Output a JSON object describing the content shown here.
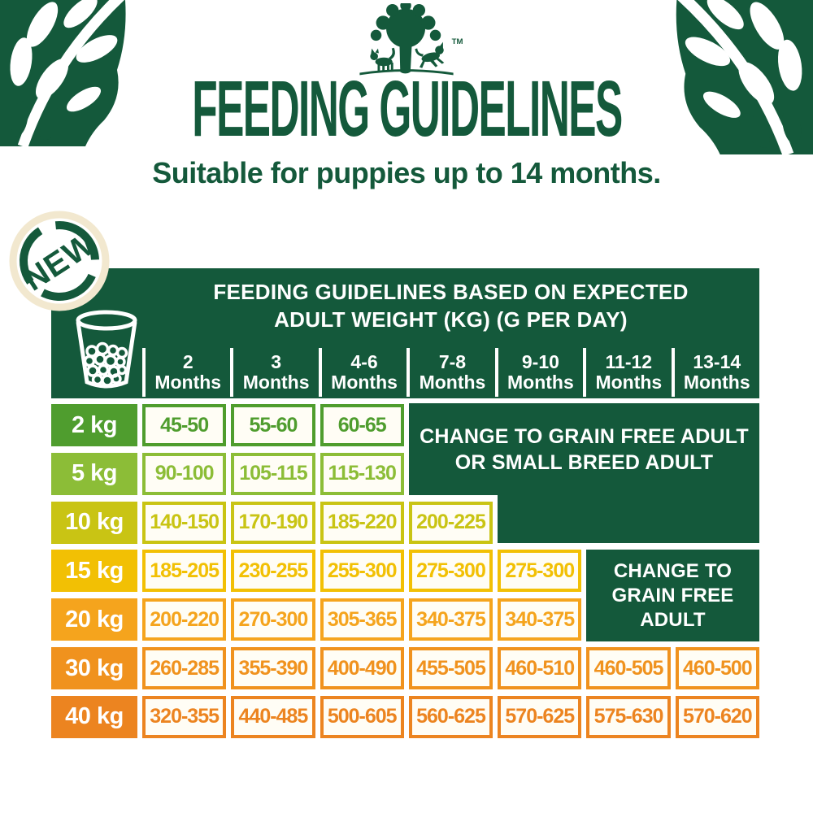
{
  "page_title": "FEEDING GUIDELINES",
  "subtitle": "Suitable for puppies up to 14 months.",
  "badge_label": "NEW",
  "tm": "TM",
  "icons": {
    "logo": "tree-with-pawprint-cat-and-dog",
    "cup": "measuring-cup-with-kibble",
    "corners": "leaf-branch-decoration"
  },
  "colors": {
    "brand_green": "#14593b",
    "cell_background": "#fffdf5",
    "badge_ring_cream": "#f2e8cf",
    "row_colors": [
      "#4f9d2e",
      "#8cbd37",
      "#c9c414",
      "#f2c004",
      "#f5a41d",
      "#f0921e",
      "#ec8420"
    ]
  },
  "chart_data": {
    "type": "table",
    "title": "FEEDING GUIDELINES BASED ON EXPECTED ADULT WEIGHT (KG) (G PER DAY)",
    "title_lines": [
      "FEEDING GUIDELINES BASED ON EXPECTED",
      "ADULT WEIGHT (KG) (G PER DAY)"
    ],
    "columns": [
      {
        "range": "2",
        "unit": "Months"
      },
      {
        "range": "3",
        "unit": "Months"
      },
      {
        "range": "4-6",
        "unit": "Months"
      },
      {
        "range": "7-8",
        "unit": "Months"
      },
      {
        "range": "9-10",
        "unit": "Months"
      },
      {
        "range": "11-12",
        "unit": "Months"
      },
      {
        "range": "13-14",
        "unit": "Months"
      }
    ],
    "rows": [
      {
        "weight": "2 kg",
        "color": "#4f9d2e",
        "values": [
          "45-50",
          "55-60",
          "60-65",
          "",
          "",
          "",
          ""
        ]
      },
      {
        "weight": "5 kg",
        "color": "#8cbd37",
        "values": [
          "90-100",
          "105-115",
          "115-130",
          "",
          "",
          "",
          ""
        ]
      },
      {
        "weight": "10 kg",
        "color": "#c9c414",
        "values": [
          "140-150",
          "170-190",
          "185-220",
          "200-225",
          "",
          "",
          ""
        ]
      },
      {
        "weight": "15 kg",
        "color": "#f2c004",
        "values": [
          "185-205",
          "230-255",
          "255-300",
          "275-300",
          "275-300",
          "",
          ""
        ]
      },
      {
        "weight": "20 kg",
        "color": "#f5a41d",
        "values": [
          "200-220",
          "270-300",
          "305-365",
          "340-375",
          "340-375",
          "",
          ""
        ]
      },
      {
        "weight": "30 kg",
        "color": "#f0921e",
        "values": [
          "260-285",
          "355-390",
          "400-490",
          "455-505",
          "460-510",
          "460-505",
          "460-500"
        ]
      },
      {
        "weight": "40 kg",
        "color": "#ec8420",
        "values": [
          "320-355",
          "440-485",
          "500-605",
          "560-625",
          "570-625",
          "575-630",
          "570-620"
        ]
      }
    ],
    "notices": [
      {
        "lines": [
          "CHANGE TO GRAIN FREE ADULT",
          "OR SMALL BREED ADULT"
        ]
      },
      {
        "lines": [
          "CHANGE TO",
          "GRAIN FREE",
          "ADULT"
        ]
      }
    ]
  }
}
